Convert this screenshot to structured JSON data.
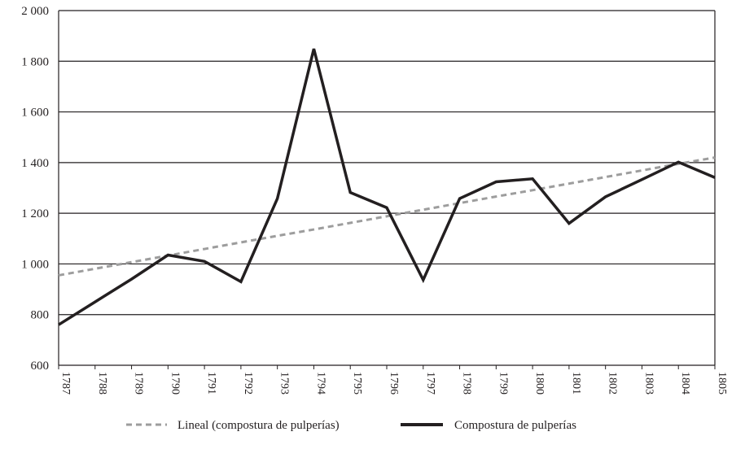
{
  "chart_data": {
    "type": "line",
    "title": "",
    "xlabel": "",
    "ylabel": "",
    "ylim": [
      600,
      2000
    ],
    "yticks": [
      "600",
      "800",
      "1 000",
      "1 200",
      "1 400",
      "1 600",
      "1 800",
      "2 000"
    ],
    "ytick_values": [
      600,
      800,
      1000,
      1200,
      1400,
      1600,
      1800,
      2000
    ],
    "categories": [
      "1787",
      "1788",
      "1789",
      "1790",
      "1791",
      "1792",
      "1793",
      "1794",
      "1795",
      "1796",
      "1797",
      "1798",
      "1799",
      "1800",
      "1801",
      "1802",
      "1803",
      "1804",
      "1805"
    ],
    "grid": true,
    "legend_position": "bottom",
    "series": [
      {
        "name": "Lineal (compostura de pulperías)",
        "style": "dashed",
        "color": "#9d9d9d",
        "values": [
          955,
          981,
          1007,
          1033,
          1059,
          1085,
          1111,
          1136,
          1162,
          1188,
          1214,
          1240,
          1266,
          1291,
          1317,
          1343,
          1369,
          1395,
          1420
        ]
      },
      {
        "name": "Compostura de pulperías",
        "style": "solid",
        "color": "#231f20",
        "values": [
          760,
          850,
          940,
          1035,
          1010,
          930,
          1258,
          1849,
          1282,
          1222,
          937,
          1258,
          1324,
          1336,
          1160,
          1265,
          1333,
          1402,
          1341
        ]
      }
    ]
  }
}
